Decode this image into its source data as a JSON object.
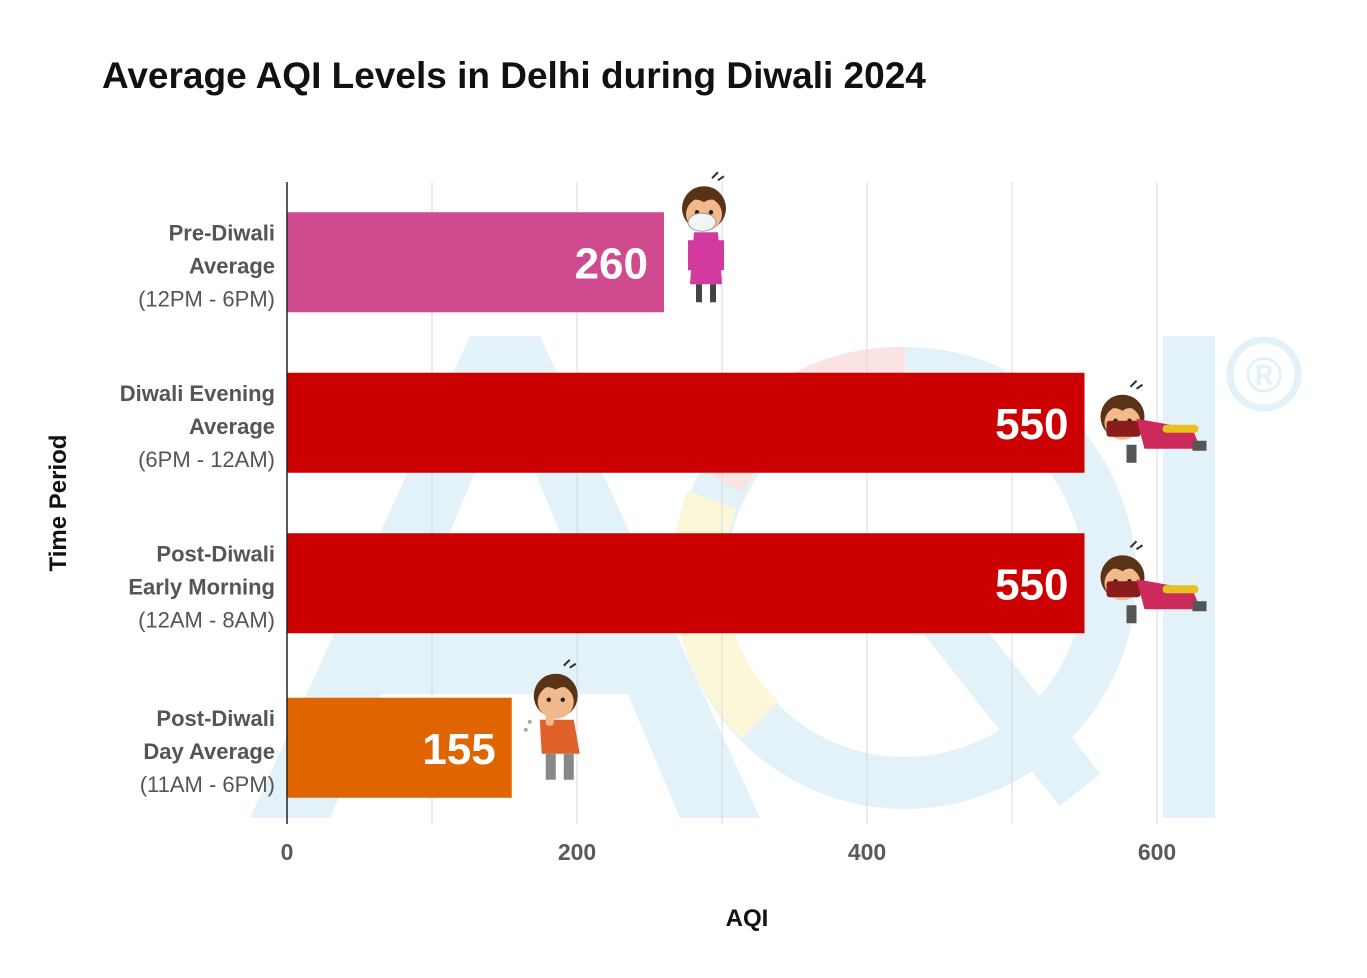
{
  "colors": {
    "pink": "#cf4a8f",
    "red": "#cc0000",
    "orange": "#e06400",
    "grid": "#d8d8d8",
    "watermark": "#e3f2f9"
  },
  "watermark": {
    "text": "AQI",
    "registered": "®"
  },
  "chart_data": {
    "type": "bar",
    "orientation": "horizontal",
    "title": "Average AQI Levels in Delhi during Diwali 2024",
    "xlabel": "AQI",
    "ylabel": "Time Period",
    "xlim": [
      0,
      640
    ],
    "xticks": [
      0,
      200,
      400,
      600
    ],
    "grid": true,
    "categories": [
      {
        "lines": [
          "Pre-Diwali",
          "Average"
        ],
        "sub": "(12PM - 6PM)",
        "value": 260,
        "color": "pink",
        "icon": "masked-boy-icon"
      },
      {
        "lines": [
          "Diwali Evening",
          "Average"
        ],
        "sub": "(6PM - 12AM)",
        "value": 550,
        "color": "red",
        "icon": "collapsed-boy-icon"
      },
      {
        "lines": [
          "Post-Diwali",
          "Early Morning"
        ],
        "sub": "(12AM - 8AM)",
        "value": 550,
        "color": "red",
        "icon": "collapsed-boy-icon"
      },
      {
        "lines": [
          "Post-Diwali",
          "Day Average"
        ],
        "sub": "(11AM - 6PM)",
        "value": 155,
        "color": "orange",
        "icon": "coughing-boy-icon"
      }
    ]
  }
}
